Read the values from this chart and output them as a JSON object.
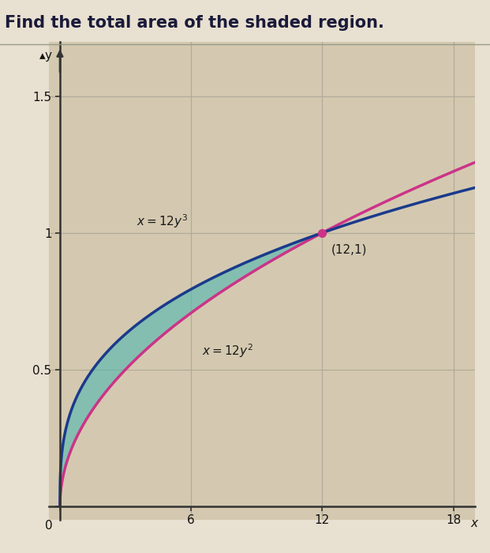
{
  "title": "Find the total area of the shaded region.",
  "title_fontsize": 15,
  "title_bg": "#e8e0d0",
  "background_color": "#d4c9b0",
  "plot_bg_color": "#d4c9b0",
  "xlim": [
    -0.5,
    19
  ],
  "ylim": [
    -0.05,
    1.7
  ],
  "xticks": [
    0,
    6,
    12,
    18
  ],
  "yticks": [
    0,
    0.5,
    1.0,
    1.5
  ],
  "curve1_label": "x = 12y³",
  "curve1_color": "#1a3a8c",
  "curve2_label": "x = 12y²",
  "curve2_color": "#cc3388",
  "fill_color": "#50b8b0",
  "fill_alpha": 0.6,
  "intersection_point": [
    12,
    1
  ],
  "intersection_color": "#cc3388",
  "annotation_intersection": "(12,1)",
  "grid_color": "#b0a898",
  "grid_alpha": 0.9,
  "grid_linewidth": 0.9
}
